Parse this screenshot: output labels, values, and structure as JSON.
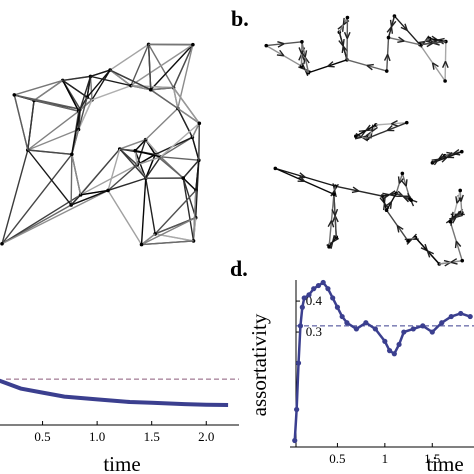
{
  "panel_labels": {
    "b": "b.",
    "d": "d."
  },
  "chart_data": [
    {
      "type": "line",
      "x_label": "time",
      "x": [
        0.1,
        0.2,
        0.3,
        0.5,
        0.7,
        1.0,
        1.3,
        1.5,
        1.8,
        2.0,
        2.2
      ],
      "series": [
        {
          "color": "#3b3f8f",
          "values": [
            0.33,
            0.3,
            0.27,
            0.24,
            0.21,
            0.19,
            0.17,
            0.165,
            0.155,
            0.15,
            0.148
          ]
        }
      ],
      "xlim": [
        0.11,
        2.3
      ],
      "ylim": [
        0,
        1
      ],
      "xticks": [
        0.5,
        {
          "value": 1,
          "label": "1.0"
        },
        1.5,
        {
          "value": 2,
          "label": "2.0"
        }
      ],
      "reference_line": 0.34,
      "reference_color": "#8a5a7a"
    },
    {
      "type": "line",
      "x_label": "time",
      "y_label": "assortativity",
      "x": [
        0.05,
        0.07,
        0.09,
        0.11,
        0.13,
        0.15,
        0.2,
        0.25,
        0.3,
        0.35,
        0.4,
        0.45,
        0.5,
        0.55,
        0.6,
        0.7,
        0.8,
        0.9,
        1.0,
        1.05,
        1.1,
        1.15,
        1.2,
        1.3,
        1.4,
        1.5,
        1.6,
        1.7,
        1.8,
        1.9
      ],
      "series": [
        {
          "color": "#3b3f8f",
          "values": [
            -0.05,
            0.05,
            0.2,
            0.32,
            0.38,
            0.41,
            0.42,
            0.44,
            0.45,
            0.46,
            0.44,
            0.41,
            0.38,
            0.35,
            0.33,
            0.31,
            0.33,
            0.31,
            0.27,
            0.24,
            0.23,
            0.26,
            0.3,
            0.31,
            0.32,
            0.3,
            0.33,
            0.35,
            0.36,
            0.35
          ]
        }
      ],
      "xlim": [
        0,
        1.94
      ],
      "ylim": [
        -0.071,
        0.468
      ],
      "xticks": [
        0.5,
        1,
        1.5
      ],
      "yticks": [
        0.3,
        0.4
      ],
      "reference_line": 0.32,
      "reference_color": "#3b3f8f"
    }
  ]
}
